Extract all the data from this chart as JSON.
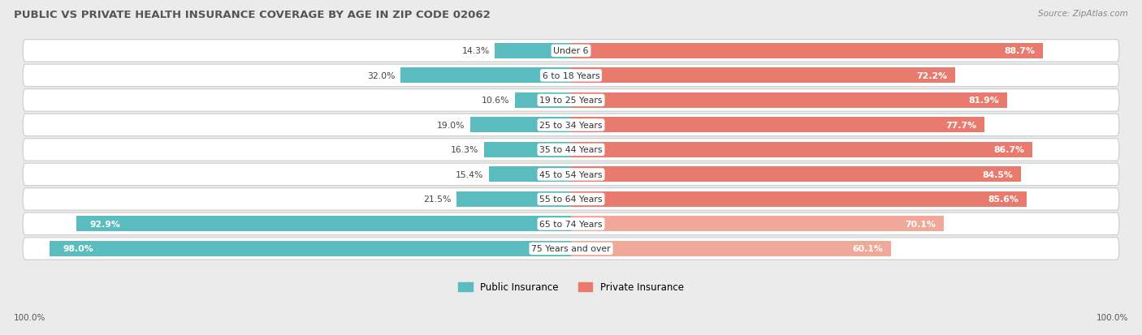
{
  "title": "PUBLIC VS PRIVATE HEALTH INSURANCE COVERAGE BY AGE IN ZIP CODE 02062",
  "source": "Source: ZipAtlas.com",
  "categories": [
    "Under 6",
    "6 to 18 Years",
    "19 to 25 Years",
    "25 to 34 Years",
    "35 to 44 Years",
    "45 to 54 Years",
    "55 to 64 Years",
    "65 to 74 Years",
    "75 Years and over"
  ],
  "public_values": [
    14.3,
    32.0,
    10.6,
    19.0,
    16.3,
    15.4,
    21.5,
    92.9,
    98.0
  ],
  "private_values": [
    88.7,
    72.2,
    81.9,
    77.7,
    86.7,
    84.5,
    85.6,
    70.1,
    60.1
  ],
  "public_color": "#5bbcbf",
  "private_color": "#e87b6e",
  "private_color_light": "#f0a898",
  "bg_color": "#ebebeb",
  "title_color": "#555555",
  "axis_label_left": "100.0%",
  "axis_label_right": "100.0%",
  "legend_public": "Public Insurance",
  "legend_private": "Private Insurance"
}
